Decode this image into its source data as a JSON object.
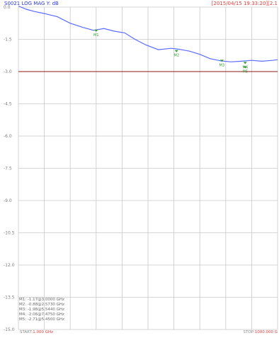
{
  "header": {
    "title": "S0021 LOG MAG  Y: dB",
    "timestamp": "[2015/04/15 19:33:20][2.1"
  },
  "footer": {
    "start_label": "START:",
    "start_value": "1.000 GHz",
    "stop_label": "STOP:",
    "stop_value": "1000.000 G"
  },
  "chart_data": {
    "type": "line",
    "title": "S0021 LOG MAG  Y: dB",
    "xlabel": "",
    "ylabel": "",
    "ylim": [
      -15.0,
      0.0
    ],
    "yticks": [
      0.0,
      -1.5,
      -3.0,
      -4.5,
      -6.0,
      -7.5,
      -9.0,
      -10.5,
      -12.0,
      -13.5,
      -15.0
    ],
    "ytick_labels": [
      "0.0",
      "-1.5",
      "-3.0",
      "-4.5",
      "-6.0",
      "-7.5",
      "-9.0",
      "-10.5",
      "-12.0",
      "-13.5",
      "-15.0"
    ],
    "reference_line": -3.0,
    "x_divisions": 10,
    "grid": true,
    "series": [
      {
        "color": "#5a6bff",
        "x": [
          0,
          0.3,
          0.6,
          1.0,
          1.5,
          2.0,
          2.5,
          2.9,
          3.3,
          3.7,
          4.1,
          4.5,
          4.9,
          5.4,
          5.9,
          6.2,
          6.6,
          7.0,
          7.4,
          7.8,
          8.2,
          8.6,
          9.0,
          9.4,
          9.8,
          10.0
        ],
        "y": [
          0.05,
          -0.1,
          -0.2,
          -0.3,
          -0.45,
          -0.75,
          -0.95,
          -1.08,
          -1.0,
          -1.12,
          -1.2,
          -1.5,
          -1.75,
          -1.98,
          -1.92,
          -1.96,
          -2.05,
          -2.2,
          -2.4,
          -2.5,
          -2.55,
          -2.52,
          -2.48,
          -2.52,
          -2.48,
          -2.45
        ]
      }
    ],
    "markers": [
      {
        "label": "M1",
        "x": 3.0,
        "y": -1.15
      },
      {
        "label": "M2",
        "x": 6.1,
        "y": -2.1
      },
      {
        "label": "M3",
        "x": 7.85,
        "y": -2.55
      },
      {
        "label": "M4",
        "x": 8.75,
        "y": -2.65
      },
      {
        "label": "M5",
        "x": 8.75,
        "y": -2.85
      }
    ],
    "marker_table": [
      "M1: -1.17@3.0000 GHz",
      "M2: -0.88@2.5730 GHz",
      "M3: -1.98@5.5440 GHz",
      "M4: -2.06@7.4750 GHz",
      "M5: -2.71@5.4500 GHz"
    ]
  },
  "colors": {
    "grid": "#c8c8c8",
    "trace": "#5a6bff",
    "reference": "#8b1a1a",
    "marker": "#2e9a2e",
    "tick": "#7a7a7a"
  }
}
